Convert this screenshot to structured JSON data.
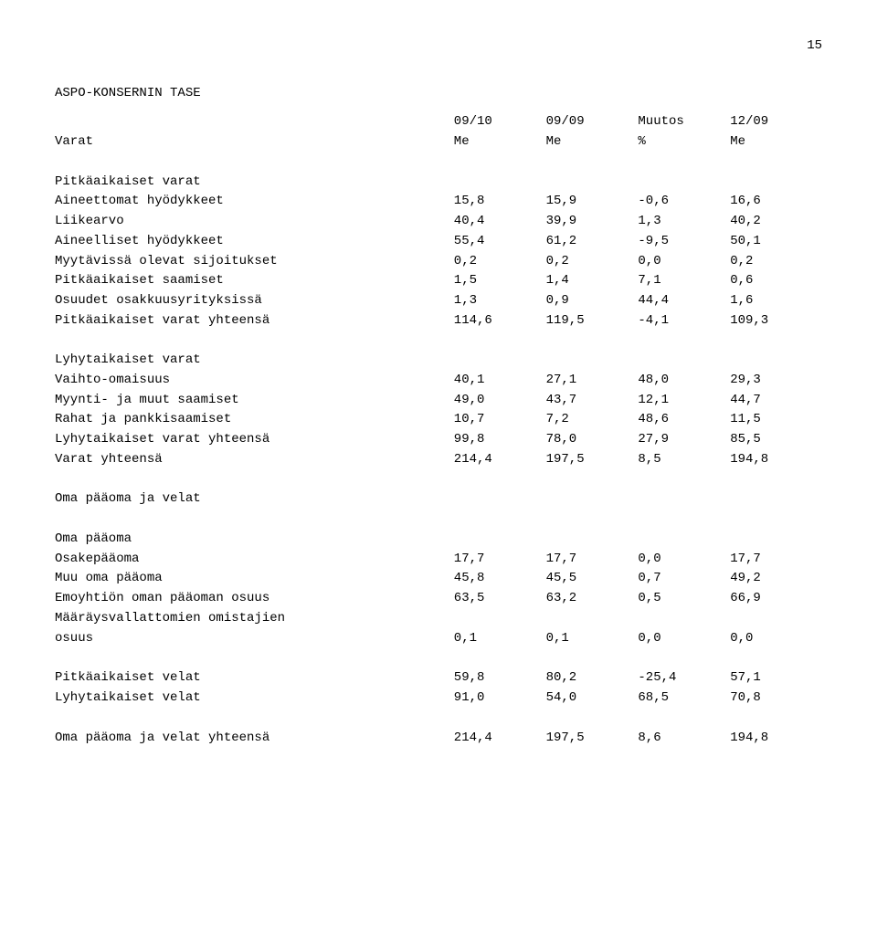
{
  "page_number": "15",
  "title": "ASPO-KONSERNIN TASE",
  "header": {
    "c1": "09/10",
    "c2": "09/09",
    "c3": "Muutos",
    "c4": "12/09",
    "u1": "Me",
    "u2": "Me",
    "u3": "%",
    "u4": "Me"
  },
  "varat_label": "Varat",
  "pitkaaikaiset_varat_label": "Pitkäaikaiset varat",
  "rows_pv": [
    {
      "label": "Aineettomat hyödykkeet",
      "v": [
        "15,8",
        "15,9",
        "-0,6",
        "16,6"
      ]
    },
    {
      "label": "Liikearvo",
      "v": [
        "40,4",
        "39,9",
        "1,3",
        "40,2"
      ]
    },
    {
      "label": "Aineelliset hyödykkeet",
      "v": [
        "55,4",
        "61,2",
        "-9,5",
        "50,1"
      ]
    },
    {
      "label": "Myytävissä olevat sijoitukset",
      "v": [
        "0,2",
        "0,2",
        "0,0",
        "0,2"
      ]
    },
    {
      "label": "Pitkäaikaiset saamiset",
      "v": [
        "1,5",
        "1,4",
        "7,1",
        "0,6"
      ]
    },
    {
      "label": "Osuudet osakkuusyrityksissä",
      "v": [
        "1,3",
        "0,9",
        "44,4",
        "1,6"
      ]
    },
    {
      "label": "Pitkäaikaiset varat yhteensä",
      "v": [
        "114,6",
        "119,5",
        "-4,1",
        "109,3"
      ]
    }
  ],
  "lyhytaikaiset_varat_label": "Lyhytaikaiset varat",
  "rows_lv": [
    {
      "label": "Vaihto-omaisuus",
      "v": [
        "40,1",
        "27,1",
        "48,0",
        "29,3"
      ]
    },
    {
      "label": "Myynti- ja muut saamiset",
      "v": [
        "49,0",
        "43,7",
        "12,1",
        "44,7"
      ]
    },
    {
      "label": "Rahat ja pankkisaamiset",
      "v": [
        "10,7",
        "7,2",
        "48,6",
        "11,5"
      ]
    },
    {
      "label": "Lyhytaikaiset varat yhteensä",
      "v": [
        "99,8",
        "78,0",
        "27,9",
        "85,5"
      ]
    },
    {
      "label": "Varat yhteensä",
      "v": [
        "214,4",
        "197,5",
        "8,5",
        "194,8"
      ]
    }
  ],
  "oma_paaoma_ja_velat_label": "Oma pääoma ja velat",
  "oma_paaoma_label": "Oma pääoma",
  "rows_op": [
    {
      "label": "Osakepääoma",
      "v": [
        "17,7",
        "17,7",
        "0,0",
        "17,7"
      ]
    },
    {
      "label": "Muu oma pääoma",
      "v": [
        "45,8",
        "45,5",
        "0,7",
        "49,2"
      ]
    },
    {
      "label": "Emoyhtiön oman pääoman osuus",
      "v": [
        "63,5",
        "63,2",
        "0,5",
        "66,9"
      ]
    }
  ],
  "maaraysvallat_line1": "Määräysvallattomien omistajien",
  "maaraysvallat_line2": {
    "label": "osuus",
    "v": [
      "0,1",
      "0,1",
      "0,0",
      "0,0"
    ]
  },
  "rows_velat": [
    {
      "label": "Pitkäaikaiset velat",
      "v": [
        "59,8",
        "80,2",
        "-25,4",
        "57,1"
      ]
    },
    {
      "label": "Lyhytaikaiset velat",
      "v": [
        "91,0",
        "54,0",
        "68,5",
        "70,8"
      ]
    }
  ],
  "total_row": {
    "label": "Oma pääoma ja velat yhteensä",
    "v": [
      "214,4",
      "197,5",
      "8,6",
      "194,8"
    ]
  }
}
